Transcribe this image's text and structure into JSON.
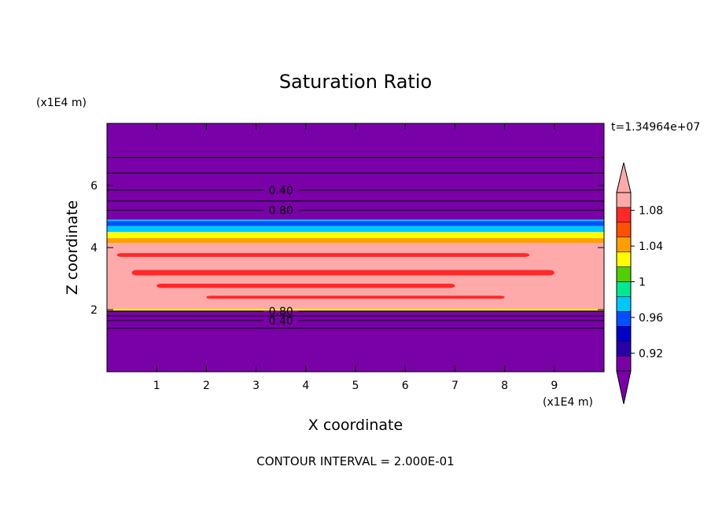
{
  "chart_data": {
    "type": "contour",
    "title": "Saturation Ratio",
    "xlabel": "X coordinate",
    "ylabel": "Z coordinate",
    "x_unit": "(x1E4 m)",
    "y_unit": "(x1E4 m)",
    "time_label": "t=1.34964e+07",
    "footer": "CONTOUR INTERVAL = 2.000E-01",
    "xlim": [
      0,
      10
    ],
    "ylim": [
      0,
      8
    ],
    "xticks": [
      1,
      2,
      3,
      4,
      5,
      6,
      7,
      8,
      9
    ],
    "yticks": [
      2,
      4,
      6
    ],
    "colorbar": {
      "ticks": [
        0.92,
        0.96,
        1,
        1.04,
        1.08
      ],
      "tick_labels": [
        "0.92",
        "0.96",
        "1",
        "1.04",
        "1.08"
      ],
      "colors": [
        "#7a00a8",
        "#2800a8",
        "#0000c8",
        "#0050ff",
        "#00c8ff",
        "#00e890",
        "#50d000",
        "#ffff00",
        "#ffa000",
        "#ff5000",
        "#ff2828",
        "#ffaaaa"
      ],
      "over_color": "#ffaaaa",
      "under_color": "#7a00a8"
    },
    "layers": [
      {
        "name": "upper dry region",
        "z": [
          4.9,
          8.0
        ],
        "color": "#7a00a8"
      },
      {
        "name": "transition band",
        "z": [
          4.5,
          4.9
        ],
        "color": "#00c8ff"
      },
      {
        "name": "near-saturated band",
        "z": [
          4.2,
          4.5
        ],
        "color": "#ffff00"
      },
      {
        "name": "supersaturated core",
        "z": [
          2.0,
          4.2
        ],
        "color": "#ffaaaa"
      },
      {
        "name": "lower dry region",
        "z": [
          0,
          2.0
        ],
        "color": "#7a00a8"
      }
    ],
    "contour_lines": [
      {
        "level": "0.40",
        "z": 5.85,
        "labeled": true,
        "label_x": 3.5
      },
      {
        "level": "0.80",
        "z": 5.2,
        "labeled": true,
        "label_x": 3.5
      },
      {
        "level": "",
        "z": 6.4,
        "labeled": false
      },
      {
        "level": "",
        "z": 5.5,
        "labeled": false
      },
      {
        "level": "",
        "z": 6.9,
        "labeled": false
      },
      {
        "level": "0.80",
        "z": 1.95,
        "labeled": true,
        "label_x": 3.5
      },
      {
        "level": "0.40",
        "z": 1.65,
        "labeled": true,
        "label_x": 3.5
      },
      {
        "level": "",
        "z": 1.4,
        "labeled": false
      },
      {
        "level": "",
        "z": 1.8,
        "labeled": false
      }
    ]
  }
}
